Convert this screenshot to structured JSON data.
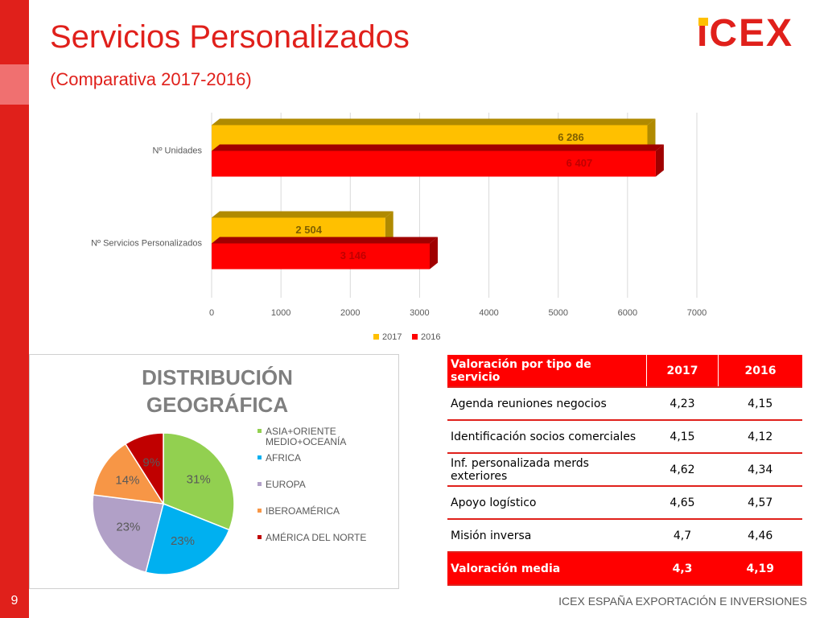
{
  "header": {
    "title": "Servicios Personalizados",
    "subtitle": "(Comparativa 2017-2016)",
    "logo": "ICEX"
  },
  "chart_data": [
    {
      "type": "hbar",
      "categories": [
        "Nº Unidades",
        "Nº Servicios Personalizados"
      ],
      "series": [
        {
          "name": "2017",
          "color": "#ffc000",
          "values": [
            6286,
            2504
          ],
          "value_labels": [
            "6 286",
            "2 504"
          ]
        },
        {
          "name": "2016",
          "color": "#ff0000",
          "values": [
            6407,
            3146
          ],
          "value_labels": [
            "6 407",
            "3 146"
          ]
        }
      ],
      "xlim": [
        0,
        7000
      ],
      "xticks": [
        0,
        1000,
        2000,
        3000,
        4000,
        5000,
        6000,
        7000
      ],
      "grid": true,
      "legend": "bottom"
    },
    {
      "type": "pie",
      "title": "DISTRIBUCIÓN GEOGRÁFICA",
      "categories": [
        "ASIA+ORIENTE MEDIO+OCEANÍA",
        "AFRICA",
        "EUROPA",
        "IBEROAMÉRICA",
        "AMÉRICA DEL NORTE"
      ],
      "values": [
        31,
        23,
        23,
        14,
        9
      ],
      "value_labels": [
        "31%",
        "23%",
        "23%",
        "14%",
        "9%"
      ],
      "colors": [
        "#92d050",
        "#00b0f0",
        "#b1a0c7",
        "#f79646",
        "#c00000"
      ],
      "legend": "right"
    }
  ],
  "table": {
    "header": [
      "Valoración por tipo de servicio",
      "2017",
      "2016"
    ],
    "rows": [
      [
        "Agenda reuniones negocios",
        "4,23",
        "4,15"
      ],
      [
        "Identificación socios comerciales",
        "4,15",
        "4,12"
      ],
      [
        "Inf. personalizada merds exteriores",
        "4,62",
        "4,34"
      ],
      [
        "Apoyo logístico",
        "4,65",
        "4,57"
      ],
      [
        "Misión inversa",
        "4,7",
        "4,46"
      ],
      [
        "Valoración media",
        "4,3",
        "4,19"
      ]
    ]
  },
  "footer": {
    "page": "9",
    "text": "ICEX ESPAÑA EXPORTACIÓN E INVERSIONES"
  }
}
